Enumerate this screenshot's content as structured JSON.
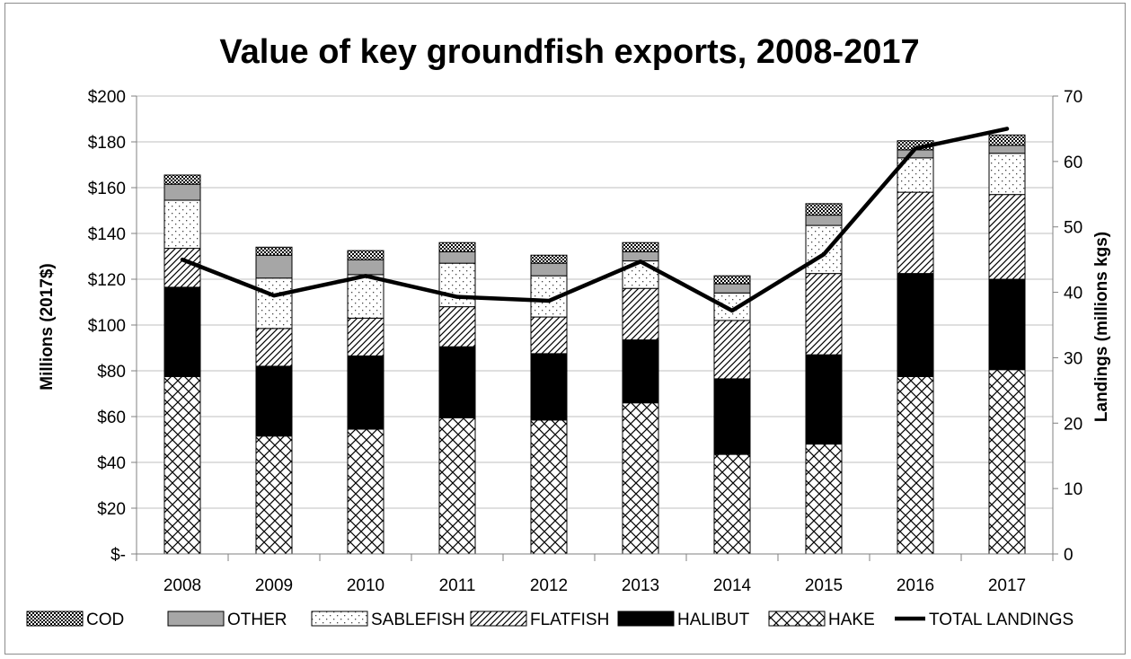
{
  "chart_data": {
    "type": "bar",
    "stacked": true,
    "title": "Value of key groundfish exports, 2008-2017",
    "ylabel": "Millions (2017$)",
    "y2label": "Landings (millions kgs)",
    "ylim": [
      0,
      200
    ],
    "y2lim": [
      0,
      70
    ],
    "yticks": [
      "$-",
      "$20",
      "$40",
      "$60",
      "$80",
      "$100",
      "$120",
      "$140",
      "$160",
      "$180",
      "$200"
    ],
    "y2ticks": [
      "0",
      "10",
      "20",
      "30",
      "40",
      "50",
      "60",
      "70"
    ],
    "grid": true,
    "legend_position": "bottom",
    "categories": [
      "2008",
      "2009",
      "2010",
      "2011",
      "2012",
      "2013",
      "2014",
      "2015",
      "2016",
      "2017"
    ],
    "series": [
      {
        "name": "HAKE",
        "pattern": "crosshatch",
        "values": [
          77.5,
          51.5,
          54.5,
          59.5,
          58.5,
          66,
          43.5,
          48,
          77.5,
          80.5
        ]
      },
      {
        "name": "HALIBUT",
        "pattern": "solid-black",
        "values": [
          39,
          30.5,
          32,
          31,
          29,
          27.5,
          33,
          39,
          45,
          39.5
        ]
      },
      {
        "name": "FLATFISH",
        "pattern": "diagonal",
        "values": [
          17,
          16.5,
          16.5,
          17.5,
          16,
          22.5,
          25.5,
          35.5,
          35.5,
          37
        ]
      },
      {
        "name": "SABLEFISH",
        "pattern": "dots",
        "values": [
          21,
          22,
          19,
          19,
          18,
          12,
          12,
          21,
          15,
          18
        ]
      },
      {
        "name": "OTHER",
        "pattern": "gray",
        "values": [
          7,
          10,
          6.5,
          5,
          5.5,
          4,
          4,
          4.5,
          3.5,
          3.5
        ]
      },
      {
        "name": "COD",
        "pattern": "checker",
        "values": [
          4,
          3.5,
          4,
          4,
          3.5,
          4,
          3.5,
          5,
          4,
          4.5
        ]
      }
    ],
    "line_series": {
      "name": "TOTAL LANDINGS",
      "axis": "right",
      "values": [
        45,
        39.5,
        42.5,
        39.3,
        38.7,
        44.7,
        37.2,
        45.8,
        62,
        65
      ]
    },
    "legend_order": [
      "COD",
      "OTHER",
      "SABLEFISH",
      "FLATFISH",
      "HALIBUT",
      "HAKE",
      "TOTAL LANDINGS"
    ],
    "colors": {
      "line": "#000000",
      "grid": "#bfbfbf",
      "other_fill": "#a6a6a6",
      "border": "#8c8c8c"
    }
  }
}
